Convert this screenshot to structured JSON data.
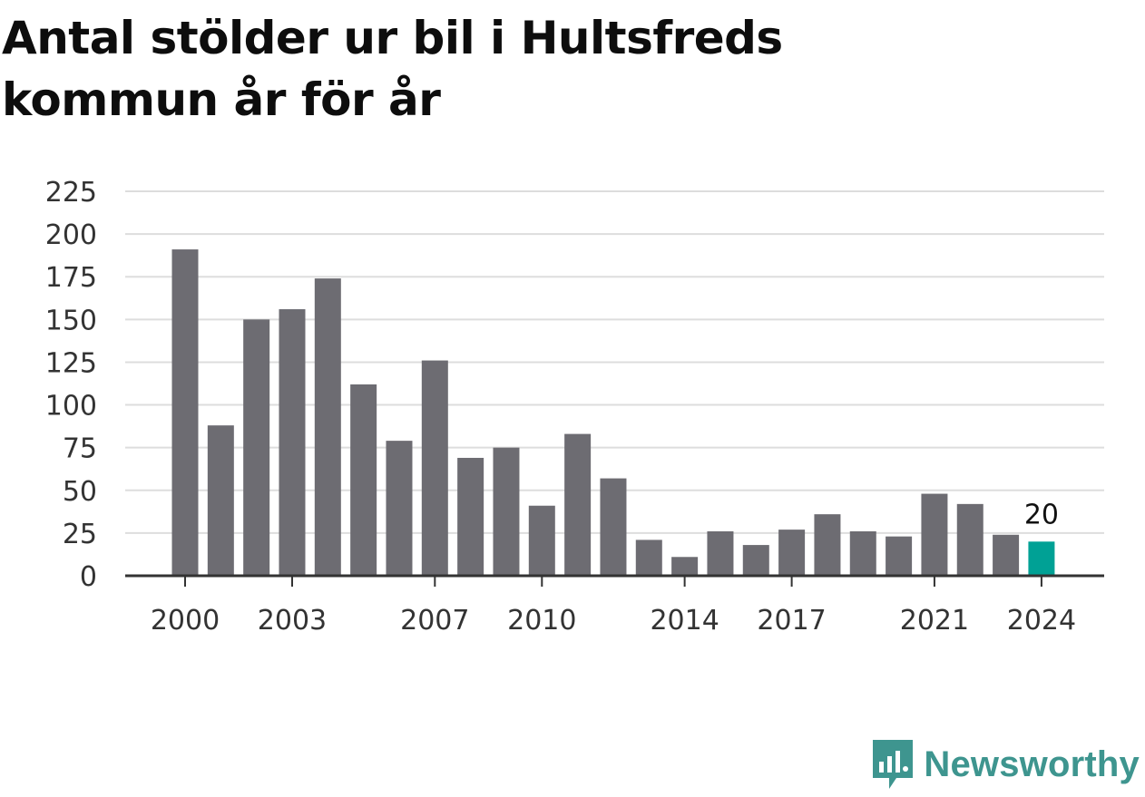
{
  "title": "Antal stölder ur bil i Hultsfreds kommun år för år",
  "brand": {
    "name": "Newsworthy",
    "icon": "newsworthy-logo-icon",
    "color": "#3e958f"
  },
  "colors": {
    "bar": "#6d6c72",
    "highlight": "#00a195",
    "grid": "#dddddd",
    "axis": "#333333"
  },
  "chart_data": {
    "type": "bar",
    "title": "Antal stölder ur bil i Hultsfreds kommun år för år",
    "xlabel": "",
    "ylabel": "",
    "categories": [
      "2000",
      "2001",
      "2002",
      "2003",
      "2004",
      "2005",
      "2006",
      "2007",
      "2008",
      "2009",
      "2010",
      "2011",
      "2012",
      "2013",
      "2014",
      "2015",
      "2016",
      "2017",
      "2018",
      "2019",
      "2020",
      "2021",
      "2022",
      "2023",
      "2024"
    ],
    "values": [
      191,
      88,
      150,
      156,
      174,
      112,
      79,
      126,
      69,
      75,
      41,
      83,
      57,
      21,
      11,
      26,
      18,
      27,
      36,
      26,
      23,
      48,
      42,
      24,
      20
    ],
    "ylim": [
      0,
      225
    ],
    "yticks": [
      "0",
      "25",
      "50",
      "75",
      "100",
      "125",
      "150",
      "175",
      "200",
      "225"
    ],
    "xticks": [
      "2000",
      "2003",
      "2007",
      "2010",
      "2014",
      "2017",
      "2021",
      "2024"
    ],
    "highlight": "2024",
    "annotation": {
      "category": "2024",
      "text": "20"
    },
    "grid": true
  }
}
